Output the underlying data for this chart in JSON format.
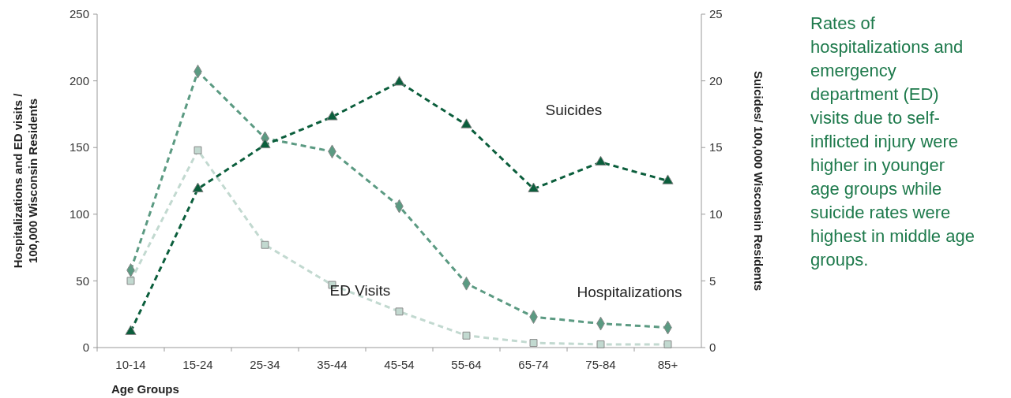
{
  "chart_data": {
    "type": "line",
    "xlabel": "Age Groups",
    "ylabel": "Hospitalizations and ED visits /\n100,000 Wisconsin Residents",
    "y2label": "Suicides/ 100,000 Wisconsin Residents",
    "categories": [
      "10-14",
      "15-24",
      "25-34",
      "35-44",
      "45-54",
      "55-64",
      "65-74",
      "75-84",
      "85+"
    ],
    "ylim": [
      0,
      250
    ],
    "yticks": [
      0,
      50,
      100,
      150,
      200,
      250
    ],
    "y2lim": [
      0,
      25
    ],
    "y2ticks": [
      0,
      5,
      10,
      15,
      20,
      25
    ],
    "grid": false,
    "legend": false,
    "line_style": "dashed",
    "series": [
      {
        "name": "ED Visits",
        "color": "#c2d9d0",
        "marker": "square",
        "values": [
          50,
          148,
          77,
          47,
          27,
          9,
          3.5,
          2.4,
          2.4
        ]
      },
      {
        "name": "Hospitalizations",
        "color": "#5b9a82",
        "marker": "diamond",
        "values": [
          58,
          207,
          157,
          147,
          106,
          48,
          23,
          18,
          15
        ]
      },
      {
        "name": "Suicides",
        "color": "#0b5e3c",
        "marker": "triangle",
        "axis": "y2",
        "values": [
          1.2,
          11.9,
          15.2,
          17.3,
          19.9,
          16.7,
          11.9,
          13.9,
          12.5
        ]
      }
    ],
    "annotations": [
      {
        "text": "Rates of hospitalizations and emergency department (ED) visits due to self-inflicted injury were higher in younger age groups while suicide rates were highest in middle age groups."
      }
    ]
  }
}
